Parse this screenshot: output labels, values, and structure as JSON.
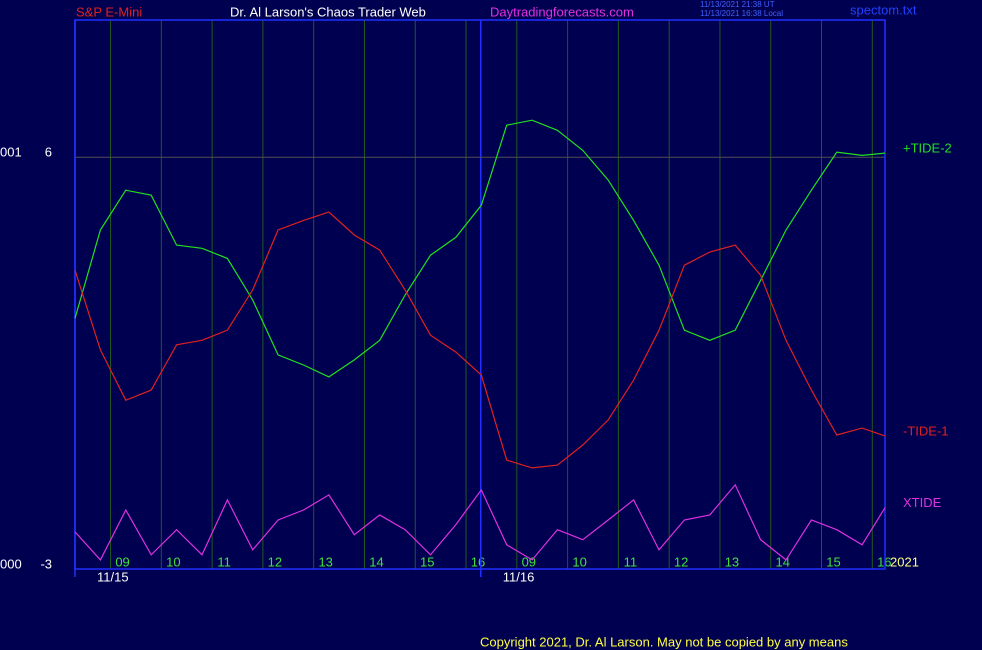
{
  "chart_data": {
    "type": "line",
    "header": {
      "symbol": "S&P E-Mini",
      "author": "Dr. Al Larson's Chaos Trader Web",
      "site": "Daytradingforecasts.com",
      "time_ut": "11/13/2021 21:38 UT",
      "time_local": "11/13/2021 16:38 Local",
      "file": "spectom.txt"
    },
    "left_labels": [
      "001",
      "000"
    ],
    "year": "2021",
    "copyright": "Copyright 2021, Dr. Al Larson. May not be copied by any means",
    "xlim": [
      0,
      15.95
    ],
    "ylim": [
      -3,
      9
    ],
    "yticks": [
      6,
      -3
    ],
    "xticks": [
      {
        "value": 0.7,
        "label": "09"
      },
      {
        "value": 1.7,
        "label": "10"
      },
      {
        "value": 2.7,
        "label": "11"
      },
      {
        "value": 3.7,
        "label": "12"
      },
      {
        "value": 4.7,
        "label": "13"
      },
      {
        "value": 5.7,
        "label": "14"
      },
      {
        "value": 6.7,
        "label": "15"
      },
      {
        "value": 7.7,
        "label": "16"
      },
      {
        "value": 8.7,
        "label": "09"
      },
      {
        "value": 9.7,
        "label": "10"
      },
      {
        "value": 10.7,
        "label": "11"
      },
      {
        "value": 11.7,
        "label": "12"
      },
      {
        "value": 12.7,
        "label": "13"
      },
      {
        "value": 13.7,
        "label": "14"
      },
      {
        "value": 14.7,
        "label": "15"
      },
      {
        "value": 15.7,
        "label": "16"
      }
    ],
    "date_ticks": [
      {
        "value": 0,
        "label": "11/15"
      },
      {
        "value": 7.99,
        "label": "11/16"
      }
    ],
    "x": [
      0,
      0.5,
      1,
      1.5,
      2,
      2.5,
      3,
      3.5,
      4,
      4.5,
      5,
      5.5,
      6,
      6.5,
      7,
      7.5,
      8,
      8.5,
      9,
      9.5,
      10,
      10.5,
      11,
      11.5,
      12,
      12.5,
      13,
      13.5,
      14,
      14.5,
      15,
      15.5,
      15.95
    ],
    "series": [
      {
        "name": "+TIDE-2",
        "color": "#20e020",
        "values": [
          2.48,
          4.41,
          5.28,
          5.17,
          4.08,
          4.01,
          3.79,
          2.88,
          1.68,
          1.46,
          1.2,
          1.57,
          2.0,
          2.99,
          3.86,
          4.25,
          4.95,
          6.7,
          6.81,
          6.59,
          6.15,
          5.5,
          4.62,
          3.64,
          2.22,
          2.0,
          2.22,
          3.31,
          4.41,
          5.28,
          6.11,
          6.04,
          6.09
        ]
      },
      {
        "name": "-TIDE-1",
        "color": "#e02020",
        "values": [
          3.53,
          1.79,
          0.69,
          0.91,
          1.9,
          2.0,
          2.22,
          3.1,
          4.41,
          4.62,
          4.8,
          4.3,
          3.97,
          3.1,
          2.11,
          1.74,
          1.24,
          -0.62,
          -0.79,
          -0.73,
          -0.29,
          0.26,
          1.13,
          2.22,
          3.64,
          3.93,
          4.08,
          3.42,
          2.0,
          0.91,
          -0.07,
          0.08,
          -0.09
        ]
      },
      {
        "name": "XTIDE",
        "color": "#e030e0",
        "values": [
          -2.19,
          -2.8,
          -1.71,
          -2.69,
          -2.14,
          -2.69,
          -1.49,
          -2.58,
          -1.93,
          -1.71,
          -1.38,
          -2.25,
          -1.82,
          -2.14,
          -2.69,
          -2.03,
          -1.27,
          -2.47,
          -2.8,
          -2.14,
          -2.36,
          -1.93,
          -1.49,
          -2.58,
          -1.93,
          -1.82,
          -1.16,
          -2.36,
          -2.8,
          -1.93,
          -2.14,
          -2.47,
          -1.66
        ]
      }
    ]
  }
}
